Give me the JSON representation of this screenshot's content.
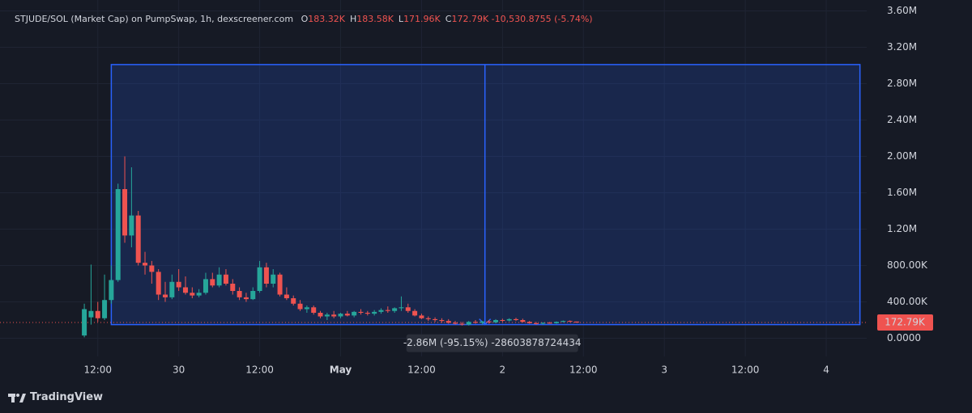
{
  "chart_data": {
    "type": "candlestick",
    "title": "STJUDE/SOL (Market Cap) on PumpSwap, 1h, dexscreener.com",
    "ohlc_header": [
      {
        "key": "O",
        "text": "183.32K"
      },
      {
        "key": "H",
        "text": "183.58K"
      },
      {
        "key": "L",
        "text": "171.96K"
      },
      {
        "key": "C",
        "text": "172.79K"
      }
    ],
    "change_text": "-10,530.8755 (-5.74%)",
    "up_color": "#26a69a",
    "down_color": "#ef5350",
    "x": [
      10,
      11,
      12,
      13,
      14,
      15,
      16,
      17,
      18,
      19,
      20,
      21,
      22,
      23,
      24,
      25,
      26,
      27,
      28,
      29,
      30,
      31,
      32,
      33,
      34,
      35,
      36,
      37,
      38,
      39,
      40,
      41,
      42,
      43,
      44,
      45,
      46,
      47,
      48,
      49,
      50,
      51,
      52,
      53,
      54,
      55,
      56,
      57,
      58,
      59,
      60,
      61,
      62,
      63,
      64,
      65,
      66,
      67,
      68,
      69,
      70,
      71,
      72,
      73,
      74,
      75,
      76,
      77,
      78,
      79,
      80,
      81,
      82,
      83
    ],
    "open": [
      30000,
      230000,
      300000,
      220000,
      420000,
      640000,
      1640000,
      1130000,
      1350000,
      830000,
      800000,
      730000,
      480000,
      450000,
      620000,
      560000,
      500000,
      470000,
      500000,
      650000,
      580000,
      700000,
      600000,
      520000,
      450000,
      430000,
      520000,
      780000,
      600000,
      700000,
      480000,
      440000,
      380000,
      320000,
      340000,
      280000,
      240000,
      260000,
      240000,
      270000,
      250000,
      290000,
      280000,
      270000,
      290000,
      310000,
      300000,
      330000,
      340000,
      300000,
      250000,
      220000,
      210000,
      200000,
      190000,
      170000,
      160000,
      150000,
      180000,
      170000,
      185000,
      175000,
      200000,
      195000,
      210000,
      200000,
      180000,
      165000,
      160000,
      170000,
      165000,
      180000,
      190000,
      183320
    ],
    "high": [
      380000,
      810000,
      400000,
      700000,
      800000,
      1700000,
      2000000,
      1880000,
      1400000,
      950000,
      850000,
      760000,
      620000,
      700000,
      760000,
      680000,
      560000,
      540000,
      720000,
      720000,
      780000,
      760000,
      650000,
      560000,
      500000,
      560000,
      850000,
      830000,
      760000,
      720000,
      560000,
      470000,
      420000,
      360000,
      360000,
      300000,
      280000,
      300000,
      280000,
      300000,
      300000,
      320000,
      300000,
      310000,
      330000,
      350000,
      340000,
      460000,
      380000,
      320000,
      270000,
      240000,
      230000,
      220000,
      210000,
      190000,
      180000,
      190000,
      200000,
      190000,
      200000,
      210000,
      215000,
      220000,
      225000,
      215000,
      190000,
      180000,
      175000,
      180000,
      185000,
      195000,
      196000,
      183580
    ],
    "low": [
      10000,
      150000,
      180000,
      200000,
      380000,
      620000,
      1050000,
      1000000,
      800000,
      700000,
      600000,
      420000,
      400000,
      430000,
      520000,
      480000,
      440000,
      450000,
      480000,
      560000,
      560000,
      580000,
      480000,
      420000,
      400000,
      420000,
      500000,
      560000,
      560000,
      460000,
      420000,
      360000,
      300000,
      280000,
      260000,
      220000,
      200000,
      220000,
      220000,
      240000,
      230000,
      260000,
      250000,
      250000,
      270000,
      280000,
      280000,
      300000,
      280000,
      240000,
      210000,
      190000,
      180000,
      170000,
      160000,
      150000,
      140000,
      140000,
      160000,
      150000,
      160000,
      165000,
      180000,
      185000,
      190000,
      175000,
      160000,
      150000,
      150000,
      160000,
      160000,
      175000,
      178000,
      171960
    ],
    "close": [
      320000,
      300000,
      220000,
      420000,
      640000,
      1640000,
      1130000,
      1350000,
      830000,
      800000,
      730000,
      480000,
      450000,
      620000,
      560000,
      500000,
      470000,
      500000,
      650000,
      580000,
      700000,
      600000,
      520000,
      450000,
      430000,
      520000,
      780000,
      600000,
      700000,
      480000,
      440000,
      380000,
      320000,
      340000,
      280000,
      240000,
      260000,
      240000,
      270000,
      250000,
      290000,
      280000,
      270000,
      290000,
      310000,
      300000,
      330000,
      340000,
      300000,
      250000,
      220000,
      210000,
      200000,
      190000,
      170000,
      160000,
      150000,
      180000,
      170000,
      185000,
      175000,
      200000,
      195000,
      210000,
      200000,
      180000,
      165000,
      160000,
      170000,
      165000,
      180000,
      190000,
      183320,
      172790
    ],
    "xlim": [
      -2.5,
      126
    ],
    "xticks": [
      {
        "value": 12,
        "label": "12:00"
      },
      {
        "value": 24,
        "label": "30"
      },
      {
        "value": 36,
        "label": "12:00"
      },
      {
        "value": 48,
        "label": "May"
      },
      {
        "value": 60,
        "label": "12:00"
      },
      {
        "value": 72,
        "label": "2"
      },
      {
        "value": 84,
        "label": "12:00"
      },
      {
        "value": 96,
        "label": "3"
      },
      {
        "value": 108,
        "label": "12:00"
      },
      {
        "value": 120,
        "label": "4"
      }
    ],
    "ylim": [
      -200000,
      3720000
    ],
    "yticks": [
      {
        "value": 0,
        "label": "0.0000"
      },
      {
        "value": 400000,
        "label": "400.00K"
      },
      {
        "value": 800000,
        "label": "800.00K"
      },
      {
        "value": 1200000,
        "label": "1.20M"
      },
      {
        "value": 1600000,
        "label": "1.60M"
      },
      {
        "value": 2000000,
        "label": "2.00M"
      },
      {
        "value": 2400000,
        "label": "2.40M"
      },
      {
        "value": 2800000,
        "label": "2.80M"
      },
      {
        "value": 3200000,
        "label": "3.20M"
      },
      {
        "value": 3600000,
        "label": "3.60M"
      }
    ],
    "grid": true,
    "price_line": {
      "value": 172790,
      "label": "172.79K",
      "color": "#ef5350"
    },
    "measure": {
      "x_range": [
        14,
        125
      ],
      "y_range": [
        150000,
        3010000
      ],
      "arrow_x": 69.4,
      "color": "#2962ff",
      "label": "-2.86M (-95.15%) -28603878724434"
    },
    "footer": "TradingView"
  }
}
